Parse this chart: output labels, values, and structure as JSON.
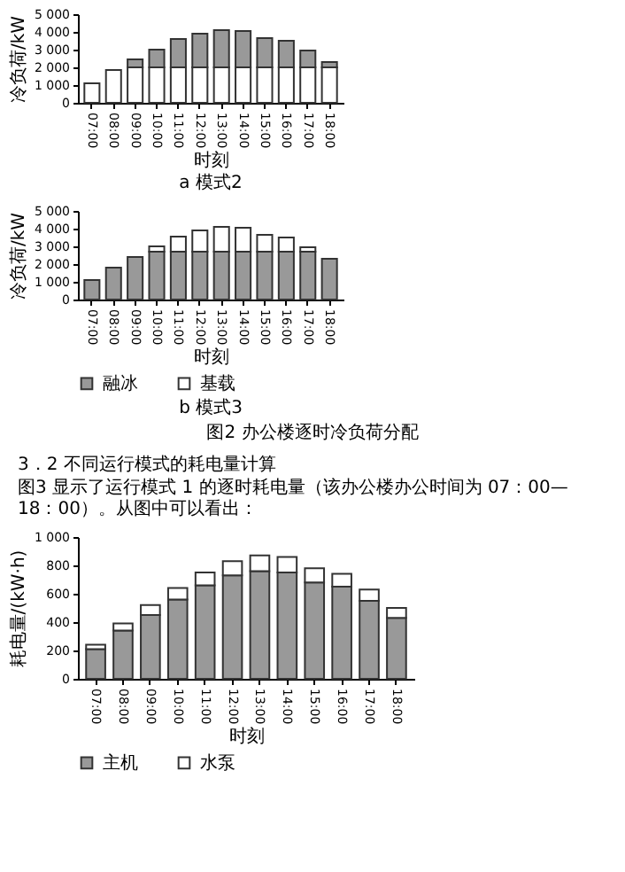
{
  "chart_data": [
    {
      "type": "bar",
      "title": "a  模式2",
      "xlabel": "时刻",
      "ylabel": "冷负荷/kW",
      "stacked": true,
      "grid": false,
      "legend": false,
      "categories": [
        "07:00",
        "08:00",
        "09:00",
        "10:00",
        "11:00",
        "12:00",
        "13:00",
        "14:00",
        "15:00",
        "16:00",
        "17:00",
        "18:00"
      ],
      "ylim": [
        0,
        5000
      ],
      "yticks": [
        0,
        {
          "value": 1000,
          "label": "1 000"
        },
        {
          "value": 2000,
          "label": "2 000"
        },
        {
          "value": 3000,
          "label": "3 000"
        },
        {
          "value": 4000,
          "label": "4 000"
        },
        {
          "value": 5000,
          "label": "5 000"
        }
      ],
      "series": [
        {
          "color": "#ffffff",
          "values": [
            1100,
            1850,
            2000,
            2000,
            2000,
            2000,
            2000,
            2000,
            2000,
            2000,
            2000,
            2000
          ]
        },
        {
          "color": "#999999",
          "values": [
            null,
            null,
            450,
            1000,
            1600,
            1900,
            2100,
            2050,
            1650,
            1500,
            950,
            300
          ]
        }
      ]
    },
    {
      "type": "bar",
      "title": "b  模式3",
      "xlabel": "时刻",
      "ylabel": "冷负荷/kW",
      "stacked": true,
      "grid": false,
      "legend": "bottom",
      "categories": [
        "07:00",
        "08:00",
        "09:00",
        "10:00",
        "11:00",
        "12:00",
        "13:00",
        "14:00",
        "15:00",
        "16:00",
        "17:00",
        "18:00"
      ],
      "ylim": [
        0,
        5000
      ],
      "yticks": [
        0,
        {
          "value": 1000,
          "label": "1 000"
        },
        {
          "value": 2000,
          "label": "2 000"
        },
        {
          "value": 3000,
          "label": "3 000"
        },
        {
          "value": 4000,
          "label": "4 000"
        },
        {
          "value": 5000,
          "label": "5 000"
        }
      ],
      "annotations": [
        "图2  办公楼逐时冷负荷分配"
      ],
      "series": [
        {
          "name": "融冰",
          "color": "#999999",
          "values": [
            1100,
            1800,
            2400,
            2700,
            2700,
            2700,
            2700,
            2700,
            2700,
            2700,
            2700,
            2300
          ]
        },
        {
          "name": "基载",
          "color": "#ffffff",
          "values": [
            null,
            null,
            null,
            300,
            850,
            1200,
            1400,
            1350,
            950,
            800,
            250,
            null
          ]
        }
      ]
    },
    {
      "type": "bar",
      "xlabel": "时刻",
      "ylabel": "耗电量/(kW·h)",
      "stacked": true,
      "grid": false,
      "legend": "bottom",
      "categories": [
        "07:00",
        "08:00",
        "09:00",
        "10:00",
        "11:00",
        "12:00",
        "13:00",
        "14:00",
        "15:00",
        "16:00",
        "17:00",
        "18:00"
      ],
      "ylim": [
        0,
        1000
      ],
      "yticks": [
        0,
        200,
        400,
        600,
        800,
        {
          "value": 1000,
          "label": "1 000"
        }
      ],
      "annotations": [
        "3．2  不同运行模式的耗电量计算",
        "图3 显示了运行模式 1 的逐时耗电量（该办公楼办公时间为 07：00—18：00）。从图中可以看出："
      ],
      "series": [
        {
          "name": "主机",
          "color": "#999999",
          "values": [
            210,
            340,
            450,
            560,
            660,
            730,
            760,
            750,
            680,
            650,
            550,
            430
          ]
        },
        {
          "name": "水泵",
          "color": "#ffffff",
          "values": [
            30,
            50,
            70,
            80,
            90,
            100,
            110,
            110,
            100,
            90,
            80,
            70
          ]
        }
      ]
    }
  ]
}
